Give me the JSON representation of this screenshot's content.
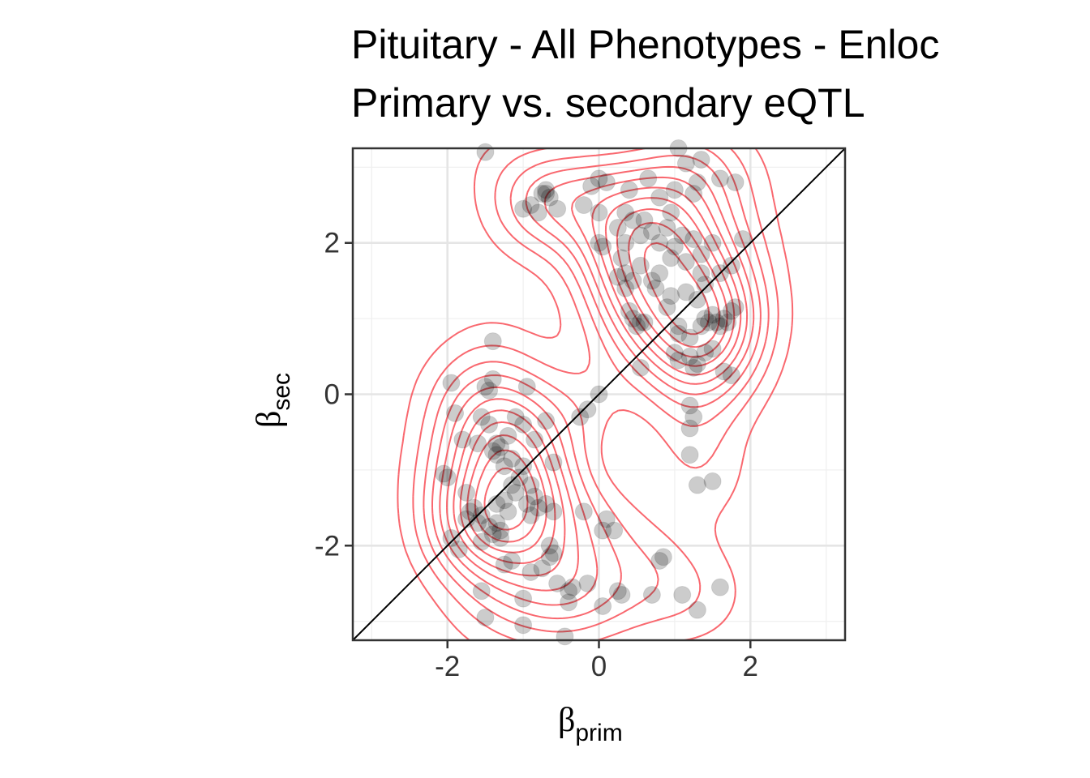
{
  "chart_data": {
    "type": "scatter",
    "title": "Pituitary - All Phenotypes - Enloc",
    "subtitle": "Primary vs. secondary eQTL",
    "xlabel": "β",
    "xlabel_sub": "prim",
    "ylabel": "β",
    "ylabel_sub": "sec",
    "xlim": [
      -3.25,
      3.25
    ],
    "ylim": [
      -3.25,
      3.25
    ],
    "x_ticks": [
      -2,
      0,
      2
    ],
    "x_tick_labels": [
      "-2",
      "0",
      "2"
    ],
    "y_ticks": [
      -2,
      0,
      2
    ],
    "y_tick_labels": [
      "-2",
      "0",
      "2"
    ],
    "grid": true,
    "reference_line": "y = x",
    "point_color": "#000000",
    "contour_color": "#f8585f",
    "series": [
      {
        "values": [
          [
            -1.5,
            3.2
          ],
          [
            -0.9,
            2.5
          ],
          [
            -1.0,
            2.45
          ],
          [
            -0.7,
            2.65
          ],
          [
            -0.7,
            2.7
          ],
          [
            -0.75,
            2.65
          ],
          [
            -0.65,
            2.6
          ],
          [
            -0.55,
            2.45
          ],
          [
            -0.8,
            2.4
          ],
          [
            -0.2,
            2.5
          ],
          [
            -0.1,
            2.75
          ],
          [
            0.0,
            2.85
          ],
          [
            0.0,
            2.4
          ],
          [
            0.1,
            2.8
          ],
          [
            0.4,
            2.7
          ],
          [
            0.65,
            2.85
          ],
          [
            0.8,
            2.6
          ],
          [
            1.05,
            3.25
          ],
          [
            1.15,
            3.05
          ],
          [
            1.35,
            3.1
          ],
          [
            1.6,
            2.85
          ],
          [
            1.8,
            2.8
          ],
          [
            1.0,
            2.7
          ],
          [
            1.25,
            2.65
          ],
          [
            1.3,
            2.8
          ],
          [
            0.25,
            2.2
          ],
          [
            0.35,
            2.4
          ],
          [
            0.45,
            2.3
          ],
          [
            0.55,
            2.1
          ],
          [
            0.6,
            2.3
          ],
          [
            0.7,
            2.15
          ],
          [
            0.8,
            2.0
          ],
          [
            0.9,
            2.2
          ],
          [
            0.95,
            2.4
          ],
          [
            1.1,
            2.1
          ],
          [
            1.25,
            2.05
          ],
          [
            1.35,
            1.85
          ],
          [
            1.5,
            2.0
          ],
          [
            1.9,
            2.05
          ],
          [
            0.0,
            2.0
          ],
          [
            0.05,
            1.95
          ],
          [
            0.3,
            1.8
          ],
          [
            0.35,
            1.6
          ],
          [
            0.45,
            1.5
          ],
          [
            0.55,
            1.7
          ],
          [
            0.7,
            1.5
          ],
          [
            0.75,
            1.4
          ],
          [
            0.8,
            1.6
          ],
          [
            0.95,
            1.8
          ],
          [
            1.0,
            1.95
          ],
          [
            1.15,
            1.75
          ],
          [
            1.35,
            1.6
          ],
          [
            1.4,
            1.45
          ],
          [
            1.6,
            1.6
          ],
          [
            1.75,
            1.7
          ],
          [
            0.95,
            1.3
          ],
          [
            1.15,
            1.35
          ],
          [
            1.3,
            1.25
          ],
          [
            0.4,
            1.1
          ],
          [
            0.45,
            1.0
          ],
          [
            0.55,
            0.95
          ],
          [
            0.5,
            0.9
          ],
          [
            0.6,
            0.95
          ],
          [
            0.9,
            1.15
          ],
          [
            1.05,
            0.9
          ],
          [
            1.05,
            0.8
          ],
          [
            1.2,
            0.75
          ],
          [
            1.35,
            0.9
          ],
          [
            1.4,
            1.0
          ],
          [
            1.5,
            1.05
          ],
          [
            1.55,
            0.95
          ],
          [
            1.45,
            0.95
          ],
          [
            1.65,
            1.0
          ],
          [
            1.7,
            0.95
          ],
          [
            1.75,
            1.1
          ],
          [
            1.8,
            1.15
          ],
          [
            1.6,
            0.9
          ],
          [
            1.0,
            0.55
          ],
          [
            1.05,
            0.45
          ],
          [
            1.2,
            0.5
          ],
          [
            1.25,
            0.35
          ],
          [
            1.3,
            0.4
          ],
          [
            1.4,
            0.55
          ],
          [
            1.5,
            0.6
          ],
          [
            1.65,
            0.3
          ],
          [
            1.75,
            0.25
          ],
          [
            0.55,
            0.35
          ],
          [
            1.2,
            -0.15
          ],
          [
            1.2,
            -0.45
          ],
          [
            1.25,
            -0.3
          ],
          [
            1.2,
            -0.8
          ],
          [
            1.3,
            -1.2
          ],
          [
            1.5,
            -1.15
          ],
          [
            1.6,
            -2.55
          ],
          [
            1.3,
            -2.85
          ],
          [
            1.1,
            -2.65
          ],
          [
            0.8,
            -2.2
          ],
          [
            0.85,
            -2.15
          ],
          [
            0.7,
            -2.65
          ],
          [
            0.3,
            -2.65
          ],
          [
            0.25,
            -2.6
          ],
          [
            0.05,
            -2.8
          ],
          [
            0.1,
            -1.65
          ],
          [
            0.2,
            -1.8
          ],
          [
            0.05,
            -1.8
          ],
          [
            -0.2,
            -1.55
          ],
          [
            -0.6,
            -1.55
          ],
          [
            -0.4,
            -2.6
          ],
          [
            -0.35,
            -2.55
          ],
          [
            -0.15,
            -2.5
          ],
          [
            -0.4,
            -2.75
          ],
          [
            -0.45,
            -3.2
          ],
          [
            -0.55,
            -2.5
          ],
          [
            -0.65,
            -2.15
          ],
          [
            -0.6,
            -2.1
          ],
          [
            -0.65,
            -2.0
          ],
          [
            -0.75,
            -2.3
          ],
          [
            -0.9,
            -2.35
          ],
          [
            -1.0,
            -2.7
          ],
          [
            -1.55,
            -2.6
          ],
          [
            -1.5,
            -2.95
          ],
          [
            -1.0,
            -3.05
          ],
          [
            -1.15,
            -2.2
          ],
          [
            -1.25,
            -2.25
          ],
          [
            -1.3,
            -1.9
          ],
          [
            -1.4,
            -1.85
          ],
          [
            -1.55,
            -1.95
          ],
          [
            -1.95,
            -1.9
          ],
          [
            -1.85,
            -2.05
          ],
          [
            -1.75,
            -1.65
          ],
          [
            -1.65,
            -1.5
          ],
          [
            -1.55,
            -1.6
          ],
          [
            -1.7,
            -1.55
          ],
          [
            -1.6,
            -1.7
          ],
          [
            -1.45,
            -1.75
          ],
          [
            -1.35,
            -1.7
          ],
          [
            -1.3,
            -1.8
          ],
          [
            -1.35,
            -1.45
          ],
          [
            -1.2,
            -1.55
          ],
          [
            -1.25,
            -1.4
          ],
          [
            -1.15,
            -1.2
          ],
          [
            -1.1,
            -1.3
          ],
          [
            -1.05,
            -1.1
          ],
          [
            -0.95,
            -1.45
          ],
          [
            -0.9,
            -1.2
          ],
          [
            -0.85,
            -1.35
          ],
          [
            -0.7,
            -1.45
          ],
          [
            -0.8,
            -1.5
          ],
          [
            -0.9,
            -1.6
          ],
          [
            -1.0,
            -0.95
          ],
          [
            -1.15,
            -0.85
          ],
          [
            -1.25,
            -0.95
          ],
          [
            -1.35,
            -0.65
          ],
          [
            -1.4,
            -0.75
          ],
          [
            -1.35,
            -0.8
          ],
          [
            -1.3,
            -0.7
          ],
          [
            -1.2,
            -0.55
          ],
          [
            -1.1,
            -0.3
          ],
          [
            -1.0,
            -0.4
          ],
          [
            -0.95,
            0.1
          ],
          [
            -0.85,
            -0.6
          ],
          [
            -0.7,
            -0.35
          ],
          [
            -0.6,
            -0.9
          ],
          [
            -1.55,
            -0.3
          ],
          [
            -1.45,
            -0.4
          ],
          [
            -1.6,
            -0.65
          ],
          [
            -1.8,
            -0.6
          ],
          [
            -1.9,
            -0.25
          ],
          [
            -1.95,
            0.15
          ],
          [
            -1.5,
            0.1
          ],
          [
            -1.45,
            0.05
          ],
          [
            -1.4,
            0.2
          ],
          [
            -1.75,
            -1.3
          ],
          [
            -2.05,
            -1.05
          ],
          [
            -2.0,
            -1.1
          ],
          [
            -1.4,
            0.7
          ],
          [
            -0.25,
            -0.3
          ],
          [
            -0.15,
            -0.2
          ],
          [
            0.0,
            0.0
          ],
          [
            0.35,
            2.0
          ],
          [
            0.25,
            1.55
          ],
          [
            0.35,
            1.4
          ]
        ]
      }
    ]
  }
}
